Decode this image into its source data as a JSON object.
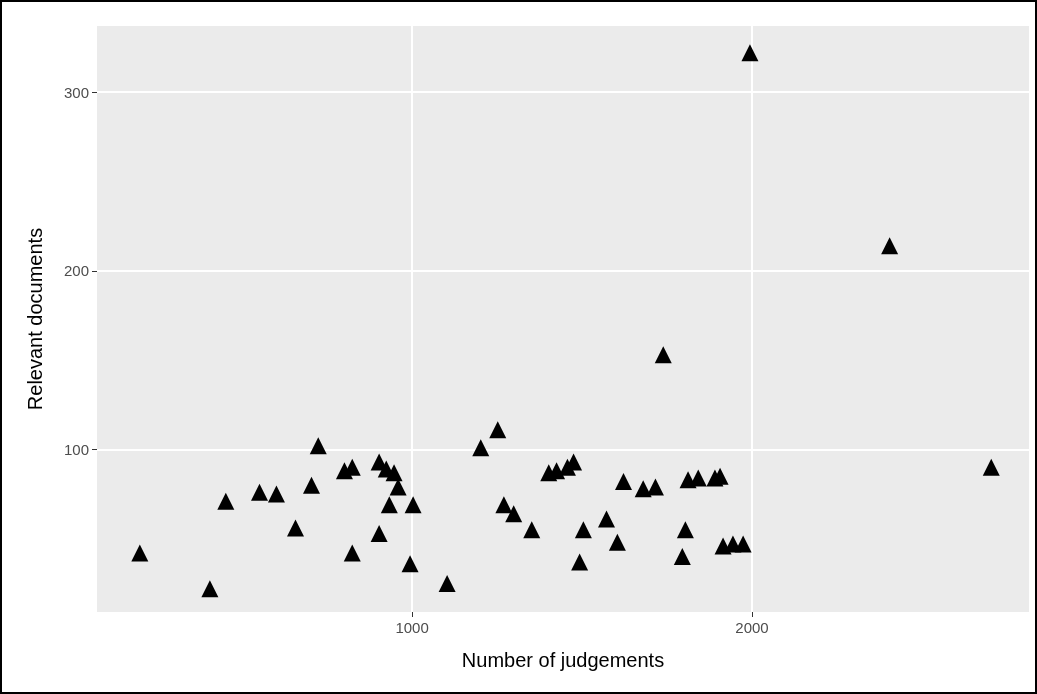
{
  "chart_data": {
    "type": "scatter",
    "xlabel": "Number of judgements",
    "ylabel": "Relevant documents",
    "x": [
      199,
      405,
      452,
      551,
      601,
      657,
      704,
      724,
      801,
      824,
      824,
      903,
      903,
      924,
      947,
      959,
      933,
      1003,
      994,
      1103,
      1252,
      1202,
      1402,
      1425,
      1457,
      1475,
      1270,
      1299,
      1352,
      1504,
      1572,
      1604,
      1493,
      1622,
      1680,
      1716,
      1812,
      1842,
      1891,
      1906,
      1804,
      1795,
      1915,
      1944,
      1974,
      1739,
      1994,
      2405,
      2704
    ],
    "series": [
      {
        "color": "#000000",
        "values": [
          42,
          22,
          71,
          76,
          75,
          56,
          80,
          102,
          88,
          90,
          42,
          53,
          93,
          89,
          87,
          79,
          69,
          69,
          36,
          25,
          111,
          101,
          87,
          88,
          90,
          93,
          69,
          64,
          55,
          55,
          61,
          48,
          37,
          82,
          78,
          79,
          83,
          84,
          84,
          85,
          55,
          40,
          46,
          47,
          47,
          153,
          322,
          214,
          90
        ]
      }
    ],
    "xlim": [
      73,
      2815
    ],
    "ylim": [
      9,
      337
    ],
    "xticks": [
      1000,
      2000
    ],
    "yticks": [
      100,
      200,
      300
    ],
    "grid": true,
    "marker": "triangle"
  }
}
